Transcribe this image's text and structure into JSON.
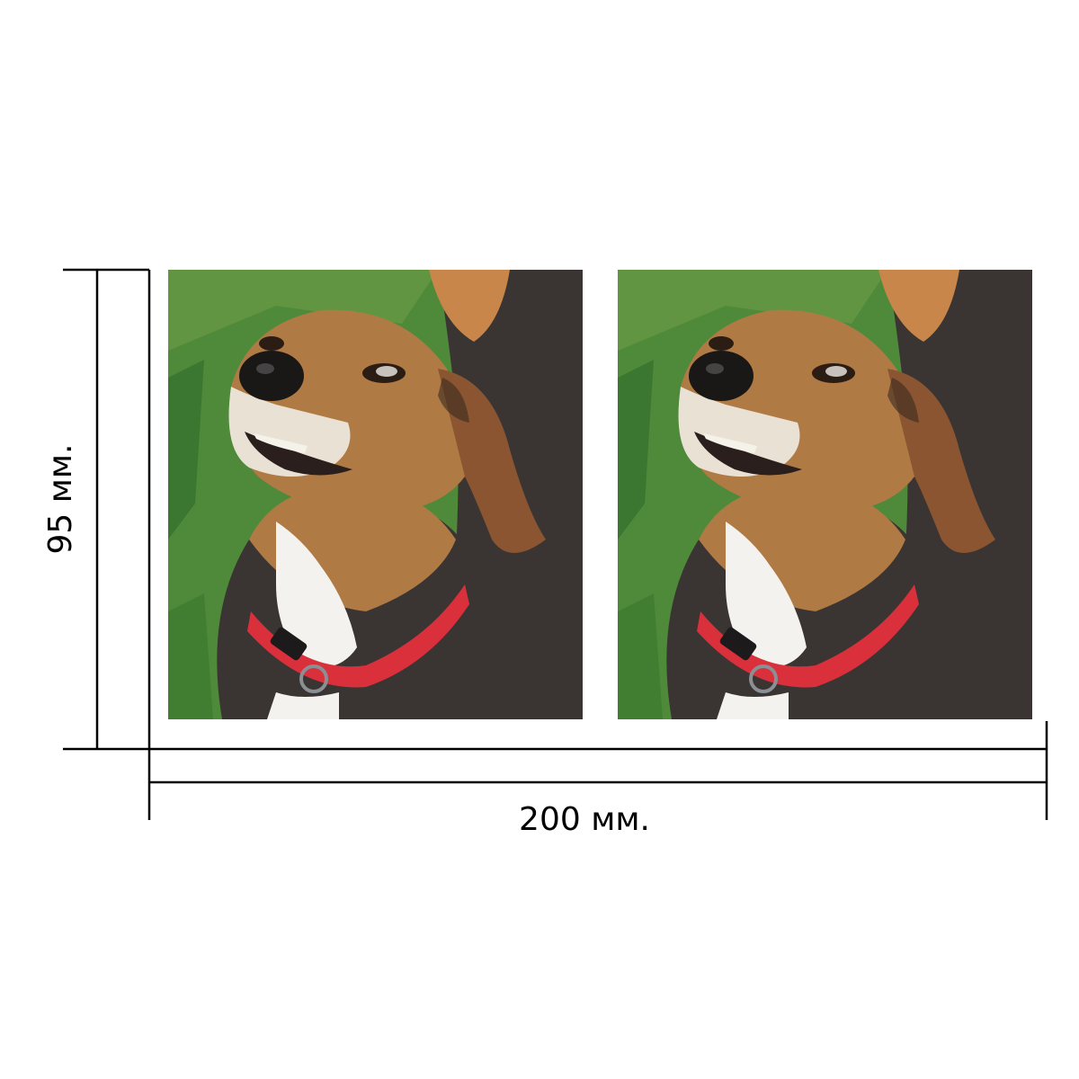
{
  "dimensions": {
    "height_label": "95 мм.",
    "width_label": "200 мм."
  },
  "photos": [
    {
      "subject": "beagle-dog-with-red-collar"
    },
    {
      "subject": "beagle-dog-with-red-collar"
    }
  ],
  "colors": {
    "grass": "#4f8a3a",
    "dog_tan": "#b07a45",
    "dog_dark": "#3a3533",
    "collar": "#d9303c",
    "white_fur": "#f4f2ee",
    "lines": "#000000"
  }
}
